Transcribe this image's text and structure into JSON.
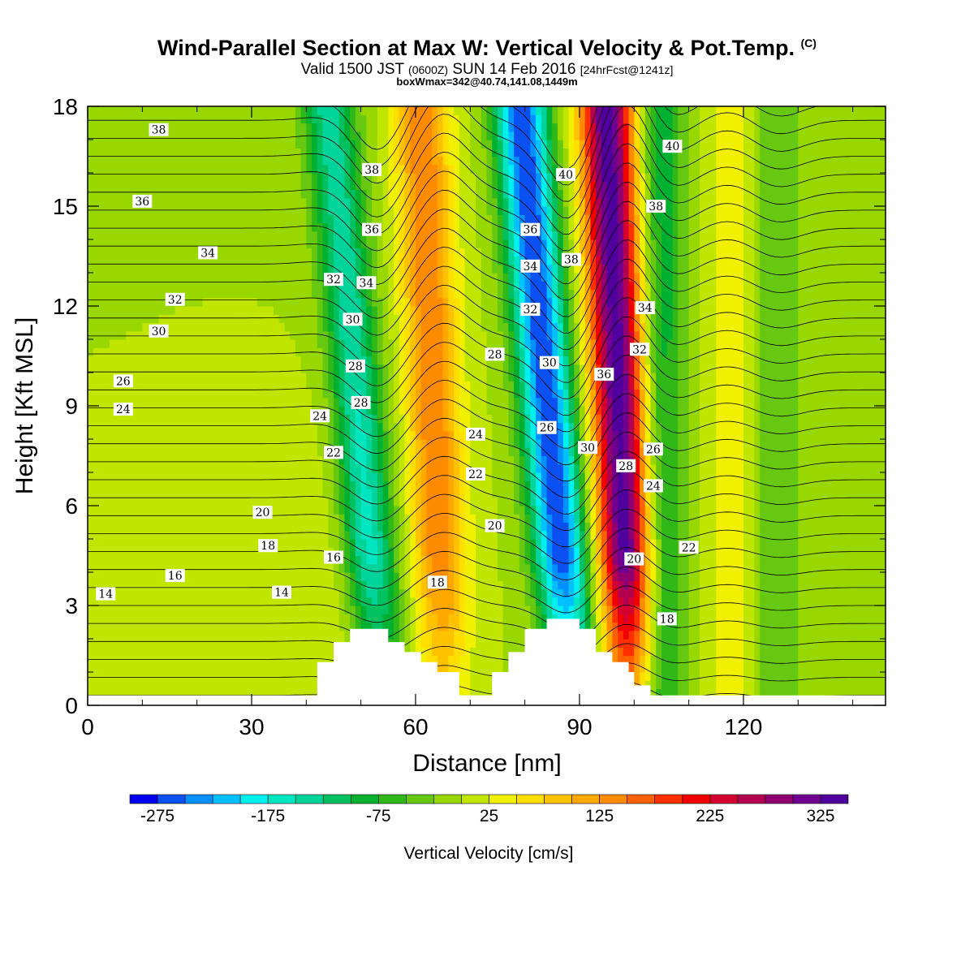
{
  "title": {
    "main": "Wind-Parallel Section at Max W: Vertical Velocity & Pot.Temp.",
    "copyright": "(C)",
    "valid_prefix": "Valid 1500 JST",
    "valid_utc": "(0600Z)",
    "valid_date": "SUN 14 Feb 2016",
    "forecast": "[24hrFcst@1241z]",
    "box_info": "boxWmax=342@40.74,141.08,1449m"
  },
  "colorbar": {
    "label": "Vertical Velocity [cm/s]",
    "tick_labels": [
      "-275",
      "-175",
      "-75",
      "25",
      "125",
      "225",
      "325"
    ],
    "tick_values": [
      -275,
      -175,
      -75,
      25,
      125,
      225,
      325
    ],
    "levels": [
      -300,
      -275,
      -250,
      -225,
      -200,
      -175,
      -150,
      -125,
      -100,
      -75,
      -50,
      -25,
      0,
      25,
      50,
      75,
      100,
      125,
      150,
      175,
      200,
      225,
      250,
      275,
      300,
      325,
      350
    ],
    "colors": [
      "#0000ee",
      "#0b50f0",
      "#0090ff",
      "#00c0ff",
      "#00f0f0",
      "#00e6c0",
      "#00d49a",
      "#00c060",
      "#00b030",
      "#30b818",
      "#66c810",
      "#98d800",
      "#c0e600",
      "#f0f000",
      "#ffde00",
      "#ffc200",
      "#ffa800",
      "#ff8c00",
      "#ff6000",
      "#ff3000",
      "#f00000",
      "#d40030",
      "#b40050",
      "#900070",
      "#700090",
      "#50009c"
    ]
  },
  "chart_data": {
    "type": "heatmap",
    "xlabel": "Distance [nm]",
    "ylabel": "Height [Kft MSL]",
    "xlim": [
      0,
      146
    ],
    "ylim": [
      0,
      18
    ],
    "x_ticks": [
      0,
      30,
      60,
      90,
      120
    ],
    "y_ticks": [
      0,
      3,
      6,
      9,
      12,
      15,
      18
    ],
    "field": "Vertical Velocity [cm/s]",
    "velocity_features": [
      {
        "x": 45,
        "w": 20,
        "comment": "weak updraft band"
      },
      {
        "x": 53,
        "w": -160,
        "comment": "downdraft band"
      },
      {
        "x": 65,
        "w": 150,
        "comment": "updraft band"
      },
      {
        "x": 88,
        "w": -275,
        "comment": "strongest downdraft"
      },
      {
        "x": 99,
        "w": 342,
        "comment": "strongest updraft"
      },
      {
        "x": 105,
        "w": -90,
        "comment": "downdraft band"
      },
      {
        "x": 118,
        "w": 35,
        "comment": "weak updraft band"
      },
      {
        "x": 126,
        "w": -50,
        "comment": "weak downdraft"
      }
    ],
    "terrain": [
      {
        "x": 42,
        "h": 0.3
      },
      {
        "x": 42,
        "h": 1.3
      },
      {
        "x": 45,
        "h": 1.3
      },
      {
        "x": 45,
        "h": 1.9
      },
      {
        "x": 48,
        "h": 1.9
      },
      {
        "x": 48,
        "h": 2.3
      },
      {
        "x": 55,
        "h": 2.3
      },
      {
        "x": 55,
        "h": 1.9
      },
      {
        "x": 58,
        "h": 1.9
      },
      {
        "x": 58,
        "h": 1.6
      },
      {
        "x": 61,
        "h": 1.6
      },
      {
        "x": 61,
        "h": 1.3
      },
      {
        "x": 64,
        "h": 1.3
      },
      {
        "x": 64,
        "h": 1.0
      },
      {
        "x": 68,
        "h": 1.0
      },
      {
        "x": 68,
        "h": 0.3
      },
      {
        "x": 74,
        "h": 0.3
      },
      {
        "x": 74,
        "h": 1.0
      },
      {
        "x": 77,
        "h": 1.0
      },
      {
        "x": 77,
        "h": 1.6
      },
      {
        "x": 80,
        "h": 1.6
      },
      {
        "x": 80,
        "h": 2.3
      },
      {
        "x": 84,
        "h": 2.3
      },
      {
        "x": 84,
        "h": 2.6
      },
      {
        "x": 90,
        "h": 2.6
      },
      {
        "x": 90,
        "h": 2.3
      },
      {
        "x": 93,
        "h": 2.3
      },
      {
        "x": 93,
        "h": 1.6
      },
      {
        "x": 96,
        "h": 1.6
      },
      {
        "x": 96,
        "h": 1.3
      },
      {
        "x": 99,
        "h": 1.3
      },
      {
        "x": 99,
        "h": 1.0
      },
      {
        "x": 100,
        "h": 1.0
      },
      {
        "x": 100,
        "h": 0.6
      },
      {
        "x": 103,
        "h": 0.6
      },
      {
        "x": 103,
        "h": 0.3
      }
    ],
    "contour_labels": [
      {
        "text": "38",
        "x": 13,
        "y": 17.3
      },
      {
        "text": "36",
        "x": 10,
        "y": 15.15
      },
      {
        "text": "34",
        "x": 22,
        "y": 13.6
      },
      {
        "text": "32",
        "x": 16,
        "y": 12.2
      },
      {
        "text": "30",
        "x": 13,
        "y": 11.25
      },
      {
        "text": "26",
        "x": 6.5,
        "y": 9.75
      },
      {
        "text": "24",
        "x": 6.5,
        "y": 8.9
      },
      {
        "text": "20",
        "x": 32,
        "y": 5.8
      },
      {
        "text": "18",
        "x": 33,
        "y": 4.8
      },
      {
        "text": "16",
        "x": 16,
        "y": 3.9
      },
      {
        "text": "14",
        "x": 3.3,
        "y": 3.35
      },
      {
        "text": "14",
        "x": 35.5,
        "y": 3.4
      },
      {
        "text": "16",
        "x": 45,
        "y": 4.45
      },
      {
        "text": "22",
        "x": 45,
        "y": 7.6
      },
      {
        "text": "24",
        "x": 42.5,
        "y": 8.7
      },
      {
        "text": "32",
        "x": 45,
        "y": 12.8
      },
      {
        "text": "38",
        "x": 52,
        "y": 16.1
      },
      {
        "text": "36",
        "x": 52,
        "y": 14.3
      },
      {
        "text": "34",
        "x": 51,
        "y": 12.7
      },
      {
        "text": "30",
        "x": 48.5,
        "y": 11.6
      },
      {
        "text": "28",
        "x": 49,
        "y": 10.2
      },
      {
        "text": "28",
        "x": 50,
        "y": 9.1
      },
      {
        "text": "28",
        "x": 74.5,
        "y": 10.55
      },
      {
        "text": "24",
        "x": 71,
        "y": 8.15
      },
      {
        "text": "22",
        "x": 71,
        "y": 6.95
      },
      {
        "text": "20",
        "x": 74.5,
        "y": 5.4
      },
      {
        "text": "18",
        "x": 64,
        "y": 3.7
      },
      {
        "text": "36",
        "x": 81,
        "y": 14.3
      },
      {
        "text": "34",
        "x": 81,
        "y": 13.2
      },
      {
        "text": "32",
        "x": 81,
        "y": 11.9
      },
      {
        "text": "30",
        "x": 84.5,
        "y": 10.3
      },
      {
        "text": "26",
        "x": 84,
        "y": 8.35
      },
      {
        "text": "40",
        "x": 87.5,
        "y": 15.95
      },
      {
        "text": "38",
        "x": 88.5,
        "y": 13.4
      },
      {
        "text": "30",
        "x": 91.5,
        "y": 7.75
      },
      {
        "text": "36",
        "x": 94.5,
        "y": 9.95
      },
      {
        "text": "28",
        "x": 98.5,
        "y": 7.2
      },
      {
        "text": "34",
        "x": 102,
        "y": 11.95
      },
      {
        "text": "32",
        "x": 101,
        "y": 10.7
      },
      {
        "text": "26",
        "x": 103.5,
        "y": 7.7
      },
      {
        "text": "24",
        "x": 103.5,
        "y": 6.6
      },
      {
        "text": "20",
        "x": 100,
        "y": 4.4
      },
      {
        "text": "22",
        "x": 110,
        "y": 4.75
      },
      {
        "text": "18",
        "x": 106,
        "y": 2.6
      },
      {
        "text": "40",
        "x": 107,
        "y": 16.8
      },
      {
        "text": "38",
        "x": 104,
        "y": 15.0
      }
    ]
  }
}
